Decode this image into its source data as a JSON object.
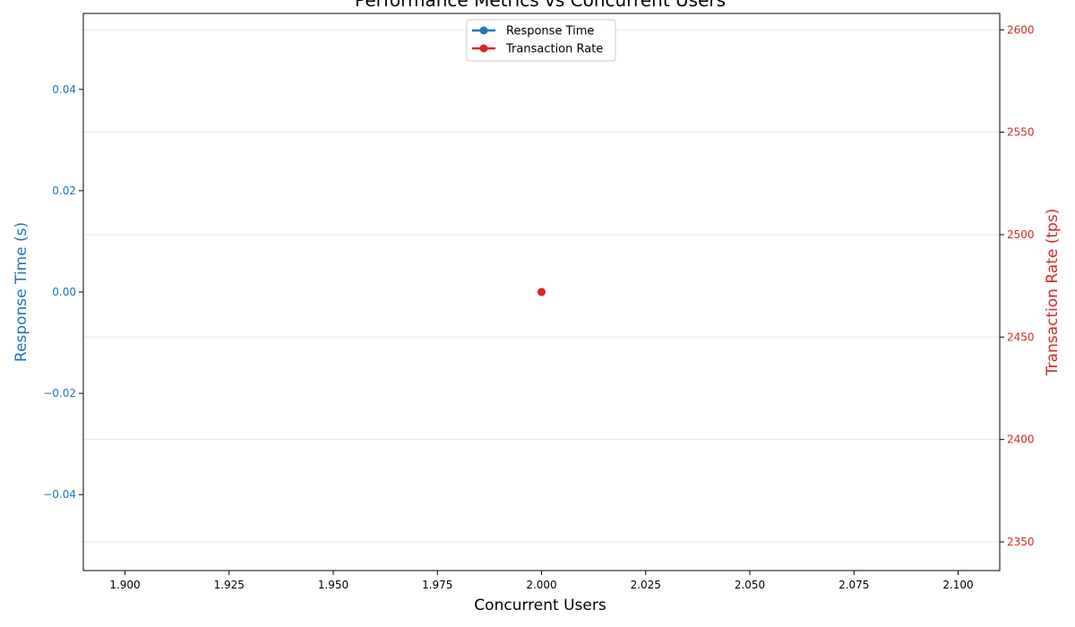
{
  "chart_data": {
    "type": "line",
    "title": "Performance Metrics vs Concurrent Users",
    "xlabel": "Concurrent Users",
    "ylabel_left": "Response Time (s)",
    "ylabel_right": "Transaction Rate (tps)",
    "xlim": [
      1.89,
      2.11
    ],
    "ylim_left": [
      -0.055,
      0.055
    ],
    "ylim_right": [
      2336,
      2608
    ],
    "x_ticks": [
      1.9,
      1.925,
      1.95,
      1.975,
      2.0,
      2.025,
      2.05,
      2.075,
      2.1
    ],
    "x_tick_labels": [
      "1.900",
      "1.925",
      "1.950",
      "1.975",
      "2.000",
      "2.025",
      "2.050",
      "2.075",
      "2.100"
    ],
    "y_left_ticks": [
      0.04,
      0.02,
      0.0,
      -0.02,
      -0.04
    ],
    "y_left_tick_labels": [
      "0.04",
      "0.02",
      "0.00",
      "−0.02",
      "−0.04"
    ],
    "y_right_ticks": [
      2600,
      2550,
      2500,
      2450,
      2400,
      2350
    ],
    "y_right_tick_labels": [
      "2600",
      "2550",
      "2500",
      "2450",
      "2400",
      "2350"
    ],
    "grid": "horizontal",
    "legend_position": "top-center",
    "series": [
      {
        "name": "Response Time",
        "axis": "left",
        "color": "#1f77b4",
        "x": [
          2.0
        ],
        "y": [
          0.0
        ]
      },
      {
        "name": "Transaction Rate",
        "axis": "right",
        "color": "#d62728",
        "x": [
          2.0
        ],
        "y": [
          2472
        ]
      }
    ],
    "colors": {
      "left_axis": "#1f77b4",
      "right_axis": "#d62728",
      "grid": "#e6e6e6",
      "frame": "#000000"
    }
  }
}
